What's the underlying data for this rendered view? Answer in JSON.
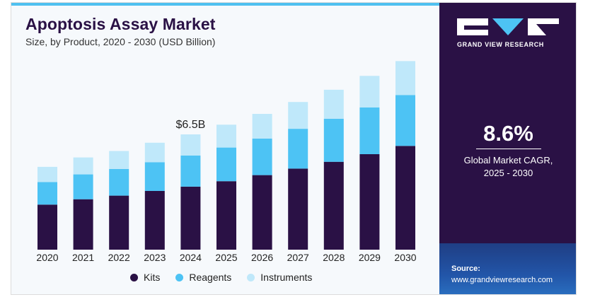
{
  "header": {
    "title": "Apoptosis Assay Market",
    "subtitle": "Size, by Product, 2020 - 2030 (USD Billion)"
  },
  "chart_data": {
    "type": "bar",
    "stacked": true,
    "categories": [
      "2020",
      "2021",
      "2022",
      "2023",
      "2024",
      "2025",
      "2026",
      "2027",
      "2028",
      "2029",
      "2030"
    ],
    "series": [
      {
        "name": "Kits",
        "color": "#2a1145",
        "values": [
          2.5,
          2.8,
          3.0,
          3.26,
          3.5,
          3.8,
          4.14,
          4.5,
          4.88,
          5.3,
          5.76
        ]
      },
      {
        "name": "Reagents",
        "color": "#4dc3f4",
        "values": [
          1.25,
          1.38,
          1.48,
          1.6,
          1.73,
          1.87,
          2.03,
          2.21,
          2.39,
          2.6,
          2.82
        ]
      },
      {
        "name": "Instruments",
        "color": "#bfe8fa",
        "values": [
          0.85,
          0.94,
          1.0,
          1.08,
          1.17,
          1.27,
          1.37,
          1.49,
          1.61,
          1.75,
          1.89
        ]
      }
    ],
    "annotations": [
      {
        "category": "2024",
        "text": "$6.5B"
      }
    ],
    "ylim": [
      0,
      10.8
    ],
    "grid": false,
    "legend": "bottom"
  },
  "sidebar": {
    "brand": "GRAND VIEW RESEARCH",
    "cagr_value": "8.6%",
    "cagr_label_line1": "Global Market CAGR,",
    "cagr_label_line2": "2025 - 2030",
    "source_label": "Source:",
    "source_url": "www.grandviewresearch.com"
  }
}
